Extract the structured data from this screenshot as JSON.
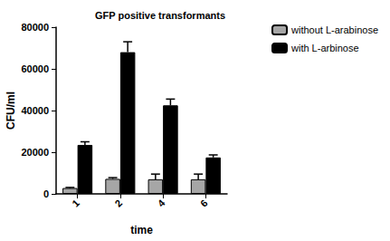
{
  "chart_data": {
    "type": "bar",
    "title": "GFP positive transformants",
    "x_label": "time",
    "y_label": "CFU/ml",
    "categories": [
      "1",
      "2",
      "4",
      "6"
    ],
    "series": [
      {
        "name": "without L-arabinose",
        "color": "#a6a6a6",
        "values": [
          2800,
          7200,
          7000,
          7000
        ],
        "errors": [
          300,
          600,
          2500,
          2500
        ]
      },
      {
        "name": "with L-arbinose",
        "color": "#000000",
        "values": [
          23500,
          68000,
          42500,
          17500
        ],
        "errors": [
          1500,
          5000,
          3000,
          1200
        ]
      }
    ],
    "ylim": [
      0,
      80000
    ],
    "yticks": [
      0,
      20000,
      40000,
      60000,
      80000
    ],
    "grid": false,
    "legend": "upper right"
  }
}
